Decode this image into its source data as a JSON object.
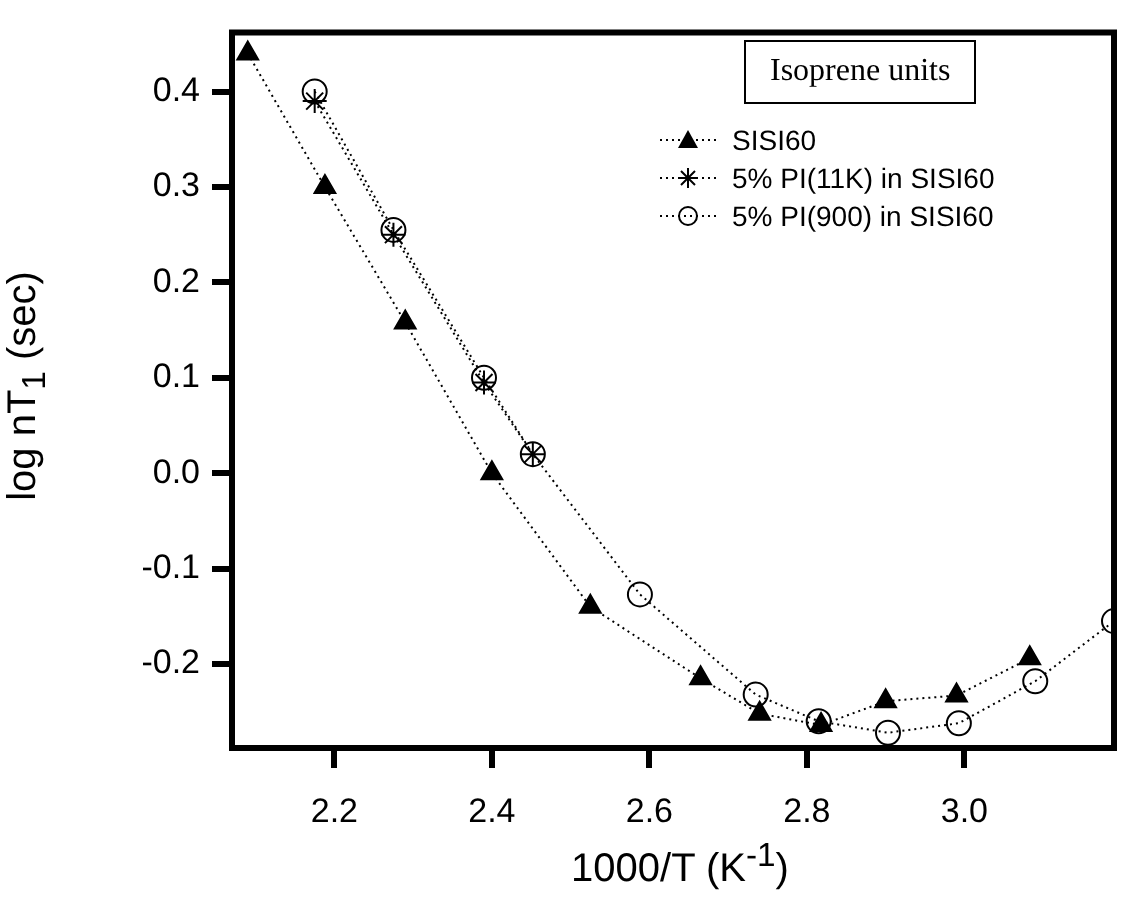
{
  "chart_data": {
    "type": "line",
    "xlabel": "1000/T (K$^{-1}$)",
    "ylabel": "log nT$_{1}$ (sec)",
    "legend_title": "Isoprene units",
    "legend": "top right",
    "line_style": "dotted",
    "grid": false,
    "xlim": [
      2.07,
      3.19
    ],
    "xticks": [
      2.2,
      2.4,
      2.6,
      2.8,
      {
        "value": 3,
        "label": "3.0"
      }
    ],
    "ylim": [
      -0.288,
      0.462
    ],
    "yticks": [
      -0.2,
      -0.1,
      {
        "value": 0,
        "label": "0.0"
      },
      0.1,
      0.2,
      0.3,
      0.4
    ],
    "series": [
      {
        "name": "SISI60",
        "color": "#000000",
        "marker": "triangle",
        "x": [
          2.09,
          2.188,
          2.29,
          2.4,
          2.525,
          2.665,
          2.74,
          2.818,
          2.9,
          2.99,
          3.083
        ],
        "values": [
          0.44,
          0.3,
          0.158,
          0.0,
          -0.14,
          -0.215,
          -0.252,
          -0.264,
          -0.239,
          -0.233,
          -0.194
        ]
      },
      {
        "name": "5% PI(11K) in SISI60",
        "color": "#000000",
        "marker": "cross",
        "x": [
          2.175,
          2.275,
          2.39,
          2.452
        ],
        "values": [
          0.39,
          0.25,
          0.095,
          0.02
        ]
      },
      {
        "name": "5% PI(900) in SISI60",
        "color": "#000000",
        "marker": "circle",
        "x": [
          2.175,
          2.275,
          2.39,
          2.452,
          2.588,
          2.735,
          2.815,
          2.903,
          2.993,
          3.09,
          3.19
        ],
        "values": [
          0.4,
          0.255,
          0.1,
          0.02,
          -0.127,
          -0.232,
          -0.26,
          -0.272,
          -0.262,
          -0.218,
          -0.155
        ]
      }
    ]
  }
}
